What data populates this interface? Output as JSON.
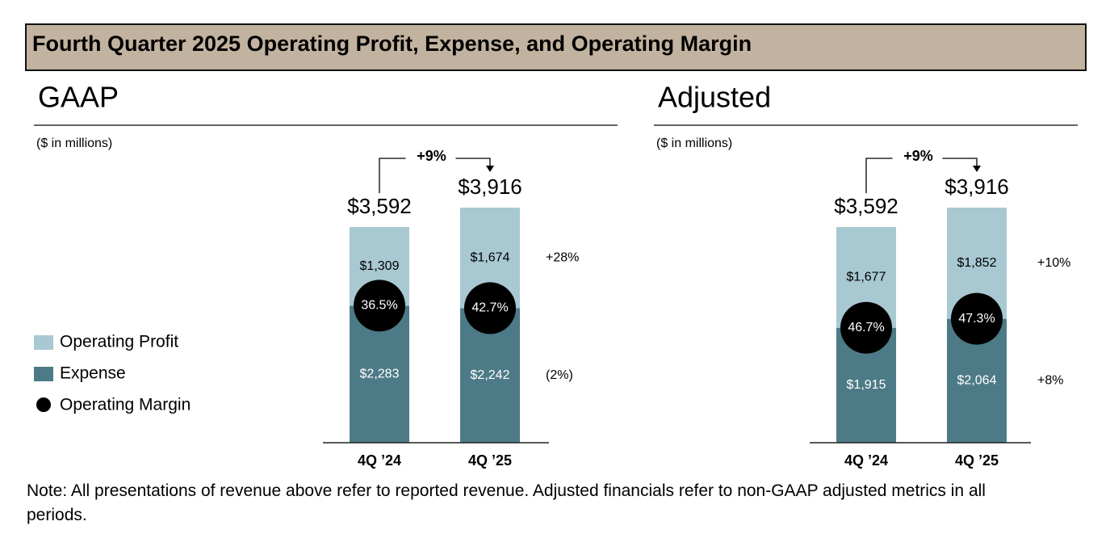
{
  "title": "Fourth Quarter 2025 Operating Profit, Expense, and Operating Margin",
  "note": "Note: All presentations of revenue above refer to reported revenue. Adjusted financials refer to non-GAAP adjusted metrics in all periods.",
  "chart_data": [
    {
      "type": "stacked-bar",
      "title": "GAAP",
      "subtitle": "($ in millions)",
      "categories": [
        "4Q ’24",
        "4Q ’25"
      ],
      "series": [
        {
          "name": "Expense",
          "color": "#4d7a87",
          "values": [
            2283,
            2242
          ],
          "value_labels": [
            "$2,283",
            "$2,242"
          ],
          "change": "(2%)"
        },
        {
          "name": "Operating Profit",
          "color": "#a8c8d2",
          "values": [
            1309,
            1674
          ],
          "value_labels": [
            "$1,309",
            "$1,674"
          ],
          "change": "+28%"
        }
      ],
      "totals": [
        3592,
        3916
      ],
      "total_labels": [
        "$3,592",
        "$3,916"
      ],
      "total_change": "+9%",
      "margin": {
        "name": "Operating Margin",
        "values": [
          36.5,
          42.7
        ],
        "value_labels": [
          "36.5%",
          "42.7%"
        ]
      }
    },
    {
      "type": "stacked-bar",
      "title": "Adjusted",
      "subtitle": "($ in millions)",
      "categories": [
        "4Q ’24",
        "4Q ’25"
      ],
      "series": [
        {
          "name": "Expense",
          "color": "#4d7a87",
          "values": [
            1915,
            2064
          ],
          "value_labels": [
            "$1,915",
            "$2,064"
          ],
          "change": "+8%"
        },
        {
          "name": "Operating Profit",
          "color": "#a8c8d2",
          "values": [
            1677,
            1852
          ],
          "value_labels": [
            "$1,677",
            "$1,852"
          ],
          "change": "+10%"
        }
      ],
      "totals": [
        3592,
        3916
      ],
      "total_labels": [
        "$3,592",
        "$3,916"
      ],
      "total_change": "+9%",
      "margin": {
        "name": "Operating Margin",
        "values": [
          46.7,
          47.3
        ],
        "value_labels": [
          "46.7%",
          "47.3%"
        ]
      }
    }
  ]
}
